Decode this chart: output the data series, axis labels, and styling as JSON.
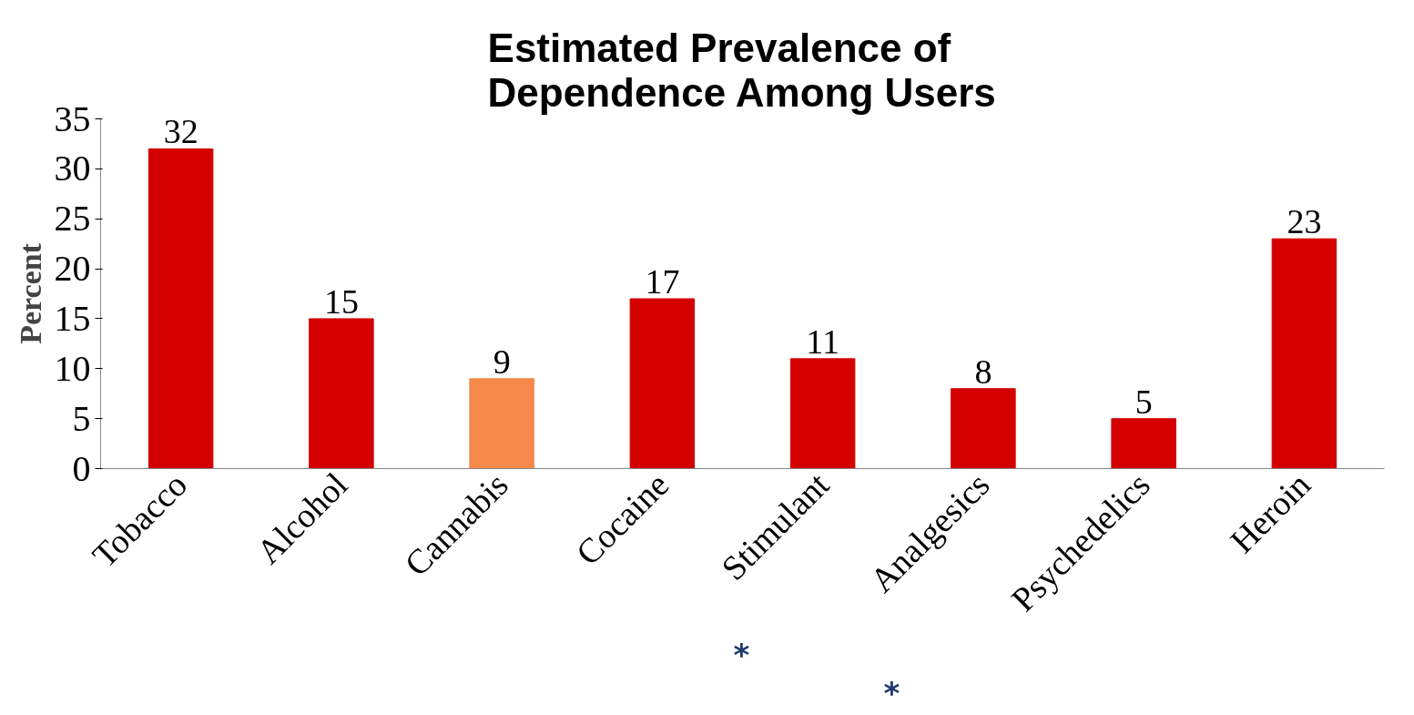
{
  "chart_data": {
    "type": "bar",
    "title": "Estimated Prevalence of Dependence Among Users",
    "ylabel": "Percent",
    "categories": [
      "Tobacco",
      "Alcohol",
      "Cannabis",
      "Cocaine",
      "Stimulant",
      "Analgesics",
      "Psychedelics",
      "Heroin"
    ],
    "values": [
      32,
      15,
      9,
      17,
      11,
      8,
      5,
      23
    ],
    "colors": [
      "#d40000",
      "#d40000",
      "#f5894a",
      "#d40000",
      "#d40000",
      "#d40000",
      "#d40000",
      "#d40000"
    ],
    "ylim": [
      0,
      35
    ],
    "yticks": [
      0,
      5,
      10,
      15,
      20,
      25,
      30,
      35
    ],
    "grid": false,
    "data_labels": true,
    "annotations": [
      "*",
      "*"
    ]
  }
}
